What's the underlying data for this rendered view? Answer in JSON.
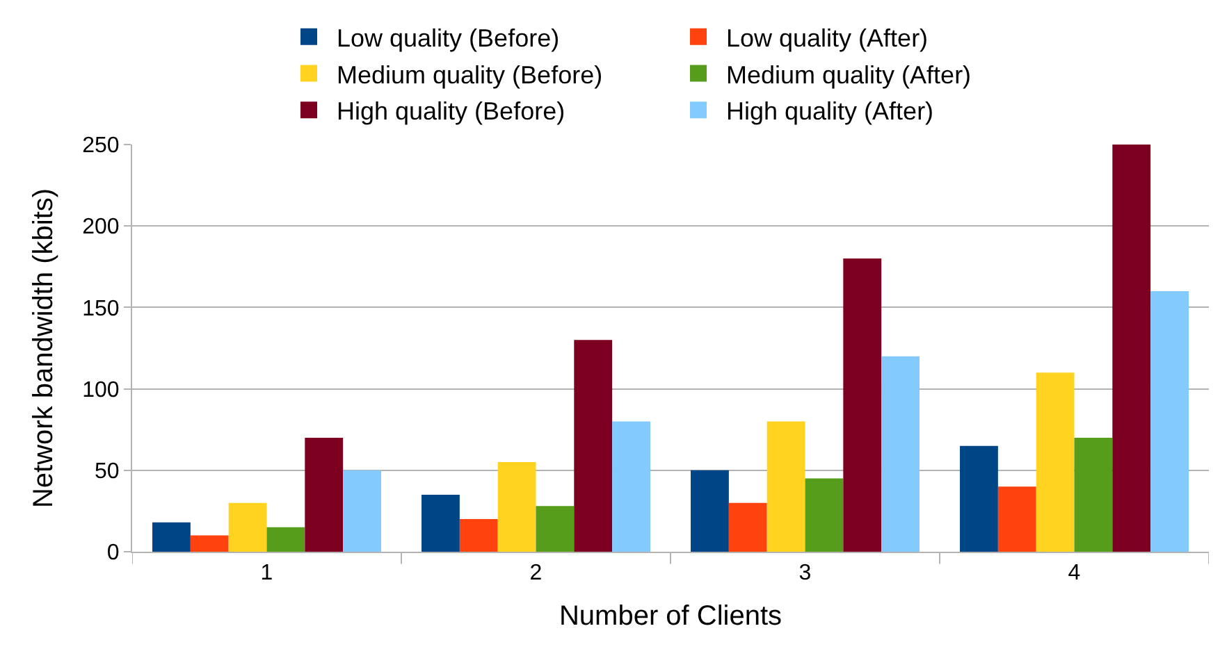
{
  "chart_data": {
    "type": "bar",
    "xlabel": "Number of Clients",
    "ylabel": "Network bandwidth (kbits)",
    "categories": [
      "1",
      "2",
      "3",
      "4"
    ],
    "series": [
      {
        "name": "Low quality (Before)",
        "color": "#004586",
        "values": [
          18,
          35,
          50,
          65
        ]
      },
      {
        "name": "Low quality (After)",
        "color": "#ff420e",
        "values": [
          10,
          20,
          30,
          40
        ]
      },
      {
        "name": "Medium quality (Before)",
        "color": "#ffd320",
        "values": [
          30,
          55,
          80,
          110
        ]
      },
      {
        "name": "Medium quality (After)",
        "color": "#579d1c",
        "values": [
          15,
          28,
          45,
          70
        ]
      },
      {
        "name": "High quality (Before)",
        "color": "#7e0021",
        "values": [
          70,
          130,
          180,
          250
        ]
      },
      {
        "name": "High quality (After)",
        "color": "#83caff",
        "values": [
          50,
          80,
          120,
          160
        ]
      }
    ],
    "ylim": [
      0,
      250
    ],
    "yticks": [
      0,
      50,
      100,
      150,
      200,
      250
    ],
    "grid": "y",
    "legend": "top"
  }
}
